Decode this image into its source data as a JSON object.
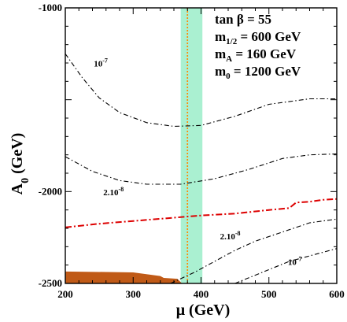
{
  "chart_data": {
    "type": "line",
    "xlabel": "μ (GeV)",
    "ylabel_main": "A",
    "ylabel_sub": "0",
    "ylabel_unit": " (GeV)",
    "xlim": [
      200,
      600
    ],
    "ylim": [
      -2500,
      -1000
    ],
    "xticks": [
      200,
      300,
      400,
      500,
      600
    ],
    "xtick_labels": [
      "200",
      "300",
      "400",
      "500",
      "600"
    ],
    "yticks": [
      -2500,
      -2000,
      -1000
    ],
    "ytick_labels": [
      "-2500",
      "-2000",
      "-1000"
    ],
    "legend_lines": [
      {
        "main": "tan β = 55",
        "sub": "",
        "tail": ""
      },
      {
        "main": "m",
        "sub": "1/2",
        "tail": " = 600 GeV"
      },
      {
        "main": "m",
        "sub": "A",
        "tail": " = 160 GeV"
      },
      {
        "main": "m",
        "sub": "0",
        "tail": " = 1200 GeV"
      }
    ],
    "contour_labels": [
      {
        "base": "10",
        "exp": "-7",
        "x": 242,
        "y": -1320
      },
      {
        "base": "2.10",
        "exp": "-8",
        "x": 256,
        "y": -2020
      },
      {
        "base": "2.10",
        "exp": "-8",
        "x": 428,
        "y": -2260
      },
      {
        "base": "10",
        "exp": "-7",
        "x": 528,
        "y": -2400
      }
    ],
    "series": [
      {
        "style": "dashdot-black",
        "color": "#000000",
        "points": [
          [
            200,
            -1250
          ],
          [
            225,
            -1380
          ],
          [
            250,
            -1490
          ],
          [
            280,
            -1570
          ],
          [
            320,
            -1625
          ],
          [
            360,
            -1645
          ],
          [
            400,
            -1640
          ],
          [
            450,
            -1590
          ],
          [
            500,
            -1525
          ],
          [
            560,
            -1495
          ],
          [
            600,
            -1495
          ]
        ]
      },
      {
        "style": "dashdot-black",
        "color": "#000000",
        "points": [
          [
            200,
            -1810
          ],
          [
            240,
            -1890
          ],
          [
            280,
            -1940
          ],
          [
            320,
            -1960
          ],
          [
            370,
            -1960
          ],
          [
            420,
            -1930
          ],
          [
            470,
            -1880
          ],
          [
            520,
            -1820
          ],
          [
            560,
            -1800
          ],
          [
            600,
            -1795
          ]
        ]
      },
      {
        "style": "dashdot-red",
        "color": "#dd0000",
        "points": [
          [
            200,
            -2195
          ],
          [
            250,
            -2175
          ],
          [
            300,
            -2160
          ],
          [
            350,
            -2145
          ],
          [
            400,
            -2130
          ],
          [
            450,
            -2120
          ],
          [
            500,
            -2100
          ],
          [
            530,
            -2090
          ],
          [
            540,
            -2060
          ],
          [
            560,
            -2055
          ],
          [
            580,
            -2045
          ],
          [
            600,
            -2040
          ]
        ]
      },
      {
        "style": "dashdot-black",
        "color": "#000000",
        "points": [
          [
            355,
            -2500
          ],
          [
            390,
            -2440
          ],
          [
            420,
            -2380
          ],
          [
            450,
            -2320
          ],
          [
            480,
            -2270
          ],
          [
            520,
            -2220
          ],
          [
            560,
            -2170
          ],
          [
            600,
            -2150
          ]
        ]
      },
      {
        "style": "dashdot-black",
        "color": "#000000",
        "points": [
          [
            450,
            -2500
          ],
          [
            490,
            -2440
          ],
          [
            530,
            -2380
          ],
          [
            570,
            -2340
          ],
          [
            600,
            -2310
          ]
        ]
      }
    ],
    "band": {
      "x": [
        370,
        402
      ],
      "y": [
        -2500,
        -1000
      ],
      "color": "#aaf0d1"
    },
    "vertical_line": {
      "x": 380,
      "color": "#ff8800"
    },
    "brown_region": {
      "color": "#c05a17",
      "points": [
        [
          200,
          -2435
        ],
        [
          300,
          -2440
        ],
        [
          340,
          -2460
        ],
        [
          345,
          -2470
        ],
        [
          365,
          -2475
        ],
        [
          372,
          -2500
        ],
        [
          200,
          -2500
        ]
      ]
    },
    "colors": {
      "axis": "#000000",
      "background": "#ffffff"
    }
  }
}
